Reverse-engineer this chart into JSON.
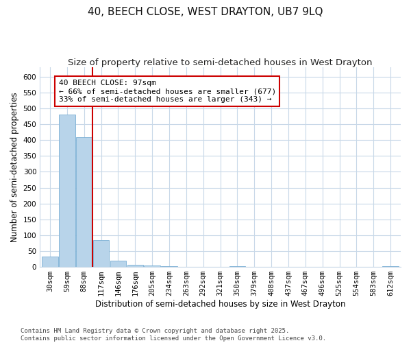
{
  "title": "40, BEECH CLOSE, WEST DRAYTON, UB7 9LQ",
  "subtitle": "Size of property relative to semi-detached houses in West Drayton",
  "xlabel": "Distribution of semi-detached houses by size in West Drayton",
  "ylabel": "Number of semi-detached properties",
  "bar_categories": [
    "30sqm",
    "59sqm",
    "88sqm",
    "117sqm",
    "146sqm",
    "176sqm",
    "205sqm",
    "234sqm",
    "263sqm",
    "292sqm",
    "321sqm",
    "350sqm",
    "379sqm",
    "408sqm",
    "437sqm",
    "467sqm",
    "496sqm",
    "525sqm",
    "554sqm",
    "583sqm",
    "612sqm"
  ],
  "bar_values": [
    33,
    481,
    410,
    85,
    20,
    6,
    5,
    3,
    0,
    0,
    0,
    3,
    0,
    0,
    0,
    0,
    0,
    0,
    0,
    0,
    3
  ],
  "bar_color": "#b8d4ea",
  "bar_edge_color": "#7aafd4",
  "property_line_x": 2.5,
  "annotation_text": "40 BEECH CLOSE: 97sqm\n← 66% of semi-detached houses are smaller (677)\n33% of semi-detached houses are larger (343) →",
  "annotation_box_color": "#ffffff",
  "annotation_box_edge": "#cc0000",
  "red_line_color": "#cc0000",
  "ylim": [
    0,
    630
  ],
  "yticks": [
    0,
    50,
    100,
    150,
    200,
    250,
    300,
    350,
    400,
    450,
    500,
    550,
    600
  ],
  "footer": "Contains HM Land Registry data © Crown copyright and database right 2025.\nContains public sector information licensed under the Open Government Licence v3.0.",
  "bg_color": "#ffffff",
  "grid_color": "#c8d8e8",
  "title_fontsize": 11,
  "subtitle_fontsize": 9.5,
  "axis_label_fontsize": 8.5,
  "tick_fontsize": 7.5,
  "footer_fontsize": 6.5,
  "annotation_fontsize": 8
}
